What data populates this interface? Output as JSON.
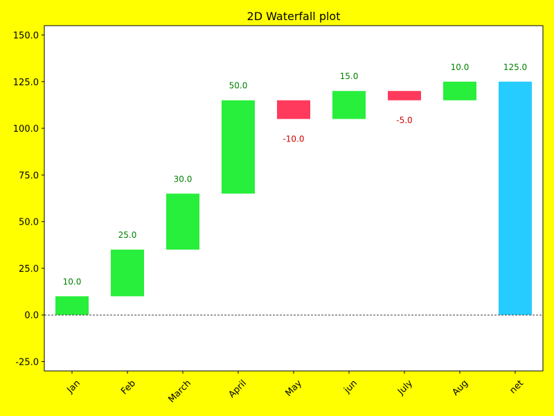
{
  "chart_data": {
    "type": "bar",
    "subtype": "waterfall",
    "title": "2D Waterfall plot",
    "xlabel": "",
    "ylabel": "",
    "categories": [
      "Jan",
      "Feb",
      "March",
      "April",
      "May",
      "jun",
      "July",
      "Aug",
      "net"
    ],
    "values": [
      10,
      25,
      30,
      50,
      -10,
      15,
      -5,
      10,
      125
    ],
    "value_labels": [
      "10.0",
      "25.0",
      "30.0",
      "50.0",
      "-10.0",
      "15.0",
      "-5.0",
      "10.0",
      "125.0"
    ],
    "total_index": 8,
    "ylim": [
      -30,
      155
    ],
    "yticks": [
      -25,
      0,
      25,
      50,
      75,
      100,
      125,
      150
    ],
    "ytick_labels": [
      "-25.0",
      "0.0",
      "25.0",
      "50.0",
      "75.0",
      "100.0",
      "125.0",
      "150.0"
    ],
    "xtick_rotation": 45,
    "zero_line": true,
    "grid": false,
    "legend": "none",
    "colors": {
      "figure_background": "#ffff00",
      "axes_background": "#ffffff",
      "increase": "#28ee3c",
      "decrease": "#ff3a5c",
      "total": "#26ccff",
      "increase_label": "#008000",
      "decrease_label": "#cc0000",
      "text": "#000000"
    }
  }
}
